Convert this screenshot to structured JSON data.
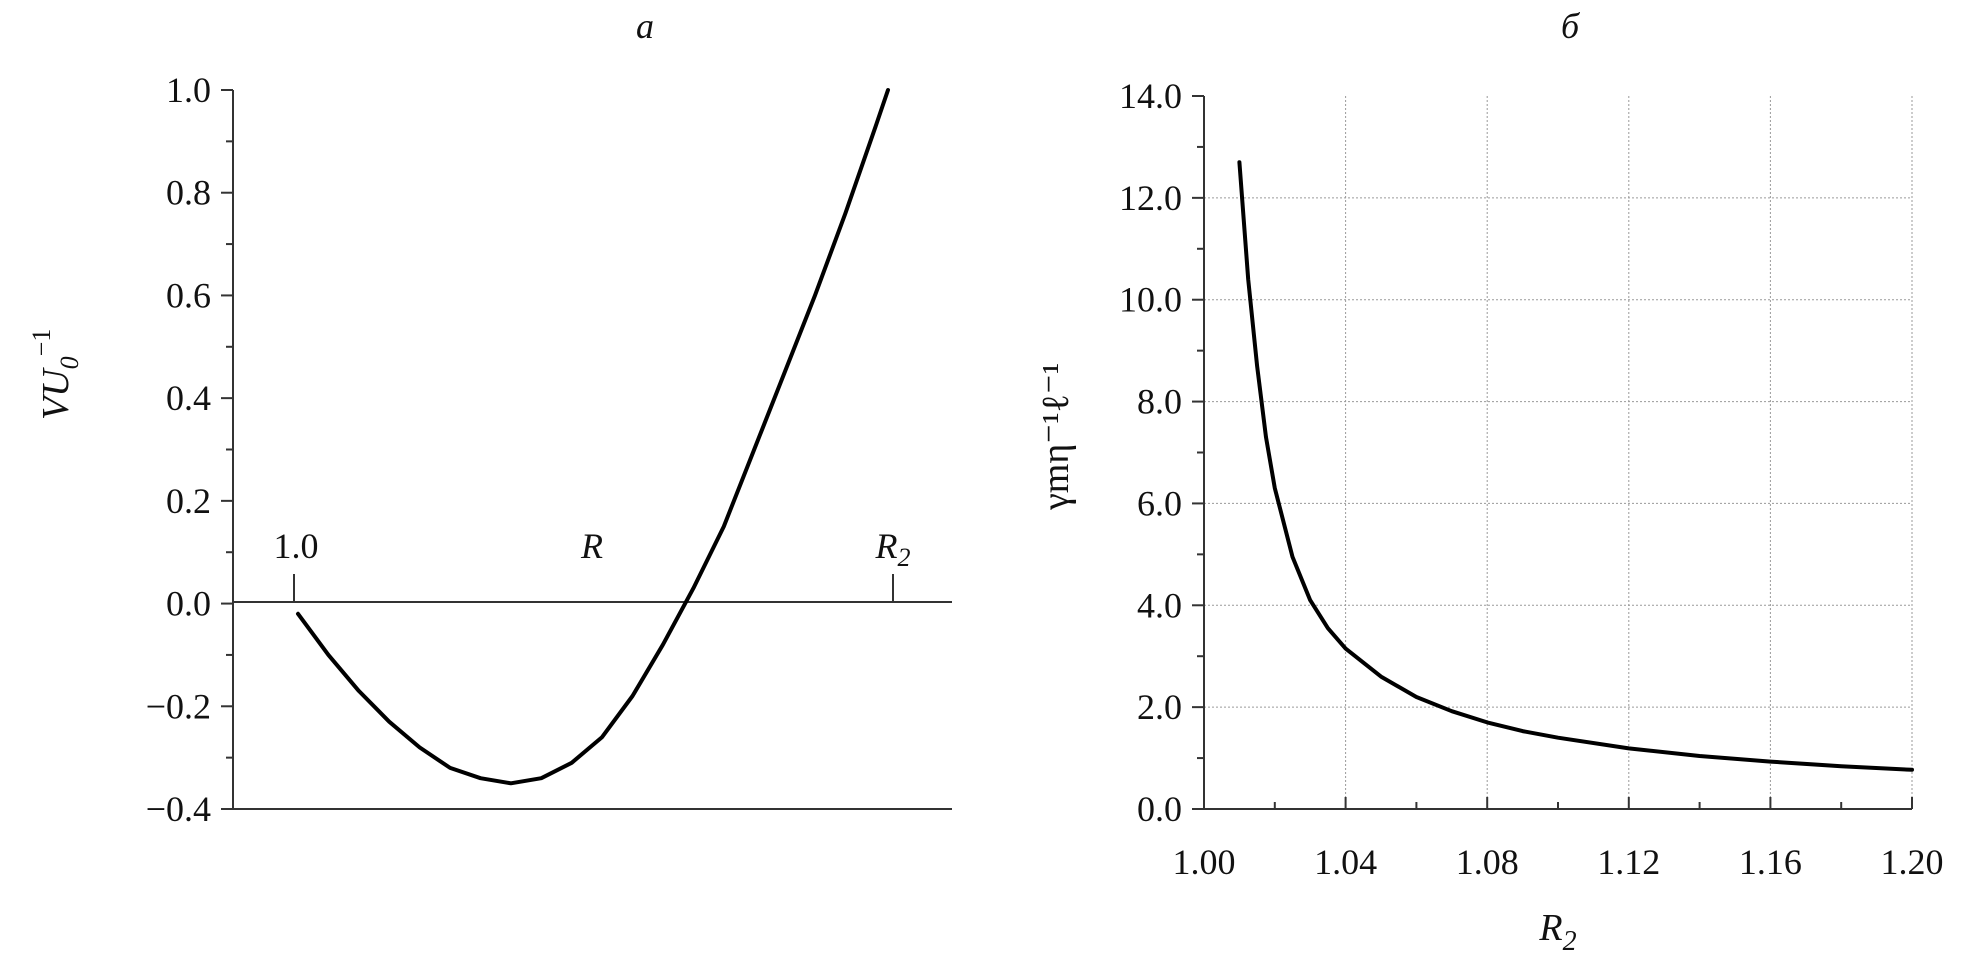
{
  "chart_data": [
    {
      "type": "line",
      "panel_label": "а",
      "title": "",
      "ylabel_main": "VU",
      "ylabel_sub": "0",
      "ylabel_sup": "−1",
      "ylim": [
        -0.4,
        1.0
      ],
      "yticks": [
        "1.0",
        "0.8",
        "0.6",
        "0.4",
        "0.2",
        "0.0",
        "−0.2",
        "−0.4"
      ],
      "annotations": {
        "x_start": "1.0",
        "x_mid": "R",
        "x_end_main": "R",
        "x_end_sub": "2"
      },
      "series": [
        {
          "x": [
            0.0,
            0.05,
            0.1,
            0.15,
            0.2,
            0.25,
            0.3,
            0.35,
            0.4,
            0.45,
            0.5,
            0.55,
            0.6,
            0.65,
            0.7,
            0.75,
            0.8,
            0.85,
            0.9,
            0.95,
            1.0,
            1.05,
            1.1
          ],
          "values": [
            -0.02,
            -0.1,
            -0.17,
            -0.23,
            -0.28,
            -0.32,
            -0.34,
            -0.35,
            -0.34,
            -0.31,
            -0.26,
            -0.18,
            -0.08,
            0.03,
            0.15,
            0.3,
            0.45,
            0.6,
            0.76,
            0.93,
            1.0,
            1.0,
            1.0
          ]
        }
      ]
    },
    {
      "type": "line",
      "panel_label": "б",
      "title": "",
      "xlabel_main": "R",
      "xlabel_sub": "2",
      "ylabel": "γmη⁻¹ℓ⁻¹",
      "xlim": [
        1.0,
        1.2
      ],
      "ylim": [
        0.0,
        14.0
      ],
      "xticks": [
        "1.00",
        "1.04",
        "1.08",
        "1.12",
        "1.16",
        "1.20"
      ],
      "yticks": [
        "14.0",
        "12.0",
        "10.0",
        "8.0",
        "6.0",
        "4.0",
        "2.0",
        "0.0"
      ],
      "grid": true,
      "series": [
        {
          "x": [
            1.01,
            1.0125,
            1.015,
            1.0175,
            1.02,
            1.025,
            1.03,
            1.035,
            1.04,
            1.05,
            1.06,
            1.07,
            1.08,
            1.09,
            1.1,
            1.12,
            1.14,
            1.16,
            1.18,
            1.2
          ],
          "values": [
            12.7,
            10.4,
            8.7,
            7.3,
            6.3,
            4.95,
            4.1,
            3.55,
            3.15,
            2.6,
            2.2,
            1.92,
            1.7,
            1.53,
            1.4,
            1.19,
            1.04,
            0.93,
            0.84,
            0.77
          ]
        }
      ]
    }
  ]
}
